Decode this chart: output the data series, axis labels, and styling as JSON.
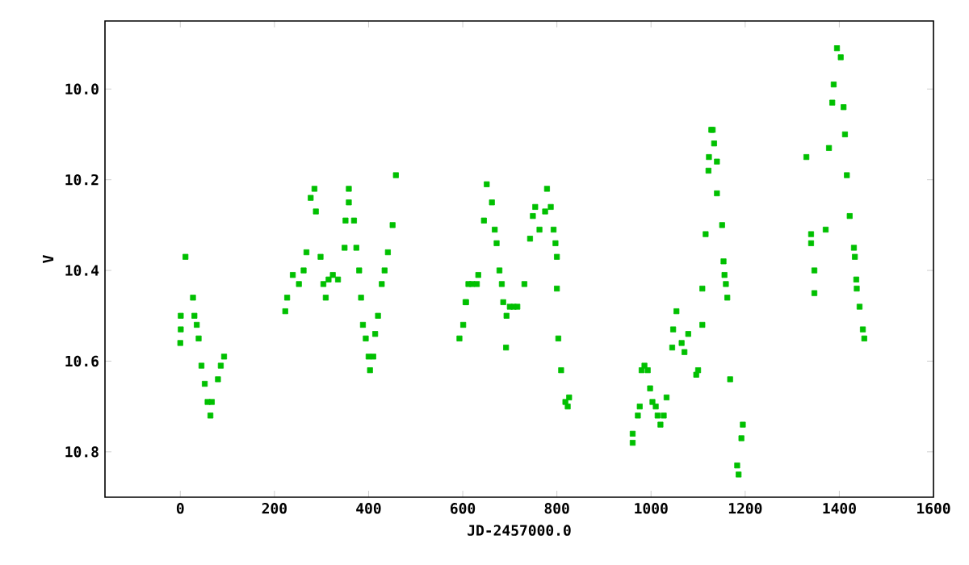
{
  "chart_data": {
    "type": "scatter",
    "xlabel": "JD-2457000.0",
    "ylabel": "V",
    "xlim": [
      -160,
      1600
    ],
    "ylim": [
      10.9,
      9.85
    ],
    "xticks": [
      0,
      200,
      400,
      600,
      800,
      1000,
      1200,
      1400,
      1600
    ],
    "yticks": [
      {
        "value": 10.0,
        "label": "10.0"
      },
      {
        "value": 10.2,
        "label": "10.2"
      },
      {
        "value": 10.4,
        "label": "10.4"
      },
      {
        "value": 10.6,
        "label": "10.6"
      },
      {
        "value": 10.8,
        "label": "10.8"
      }
    ],
    "marker": "square",
    "series": [
      {
        "color": "#00c000",
        "x": [
          0,
          1,
          1,
          11,
          27,
          30,
          35,
          39,
          45,
          52,
          58,
          64,
          67,
          80,
          86,
          93,
          223,
          227,
          239,
          252,
          262,
          268,
          277,
          285,
          288,
          298,
          304,
          309,
          315,
          324,
          335,
          349,
          351,
          358,
          358,
          369,
          374,
          380,
          384,
          388,
          394,
          400,
          403,
          410,
          414,
          420,
          428,
          434,
          441,
          451,
          458,
          593,
          601,
          606,
          607,
          612,
          620,
          630,
          633,
          645,
          651,
          662,
          668,
          672,
          678,
          683,
          686,
          692,
          693,
          700,
          708,
          716,
          731,
          743,
          749,
          754,
          763,
          775,
          779,
          787,
          793,
          797,
          800,
          800,
          803,
          809,
          818,
          823,
          826,
          961,
          961,
          972,
          976,
          980,
          986,
          993,
          998,
          1003,
          1010,
          1014,
          1020,
          1027,
          1033,
          1045,
          1047,
          1054,
          1065,
          1071,
          1079,
          1096,
          1100,
          1109,
          1109,
          1116,
          1122,
          1123,
          1128,
          1131,
          1134,
          1140,
          1140,
          1151,
          1154,
          1156,
          1159,
          1162,
          1168,
          1183,
          1186,
          1192,
          1195,
          1330,
          1340,
          1340,
          1347,
          1347,
          1371,
          1378,
          1385,
          1388,
          1395,
          1403,
          1409,
          1412,
          1416,
          1422,
          1431,
          1433,
          1436,
          1437,
          1443,
          1450,
          1453
        ],
        "values": [
          10.56,
          10.5,
          10.53,
          10.37,
          10.46,
          10.5,
          10.52,
          10.55,
          10.61,
          10.65,
          10.69,
          10.72,
          10.69,
          10.64,
          10.61,
          10.59,
          10.49,
          10.46,
          10.41,
          10.43,
          10.4,
          10.36,
          10.24,
          10.22,
          10.27,
          10.37,
          10.43,
          10.46,
          10.42,
          10.41,
          10.42,
          10.35,
          10.29,
          10.22,
          10.25,
          10.29,
          10.35,
          10.4,
          10.46,
          10.52,
          10.55,
          10.59,
          10.62,
          10.59,
          10.54,
          10.5,
          10.43,
          10.4,
          10.36,
          10.3,
          10.19,
          10.55,
          10.52,
          10.47,
          10.47,
          10.43,
          10.43,
          10.43,
          10.41,
          10.29,
          10.21,
          10.25,
          10.31,
          10.34,
          10.4,
          10.43,
          10.47,
          10.57,
          10.5,
          10.48,
          10.48,
          10.48,
          10.43,
          10.33,
          10.28,
          10.26,
          10.31,
          10.27,
          10.22,
          10.26,
          10.31,
          10.34,
          10.37,
          10.44,
          10.55,
          10.62,
          10.69,
          10.7,
          10.68,
          10.78,
          10.76,
          10.72,
          10.7,
          10.62,
          10.61,
          10.62,
          10.66,
          10.69,
          10.7,
          10.72,
          10.74,
          10.72,
          10.68,
          10.57,
          10.53,
          10.49,
          10.56,
          10.58,
          10.54,
          10.63,
          10.62,
          10.52,
          10.44,
          10.32,
          10.18,
          10.15,
          10.09,
          10.09,
          10.12,
          10.16,
          10.23,
          10.3,
          10.38,
          10.41,
          10.43,
          10.46,
          10.64,
          10.83,
          10.85,
          10.77,
          10.74,
          10.15,
          10.32,
          10.34,
          10.4,
          10.45,
          10.31,
          10.13,
          10.03,
          9.99,
          9.91,
          9.93,
          10.04,
          10.1,
          10.19,
          10.28,
          10.35,
          10.37,
          10.42,
          10.44,
          10.48,
          10.53,
          10.55
        ]
      }
    ]
  }
}
